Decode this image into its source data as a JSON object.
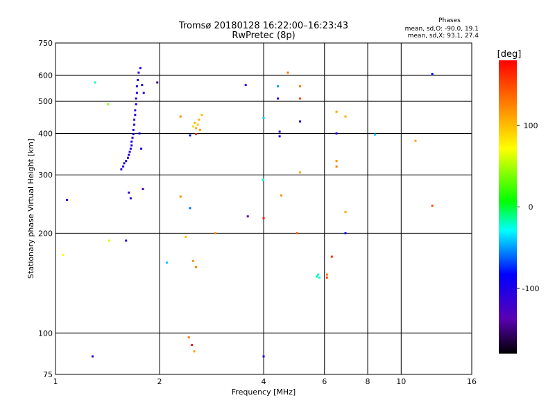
{
  "chart_data": {
    "type": "scatter",
    "title": "Tromsø 20180128 16:22:00–16:23:43",
    "subtitle": "RwPretec (8p)",
    "xlabel": "Frequency [MHz]",
    "ylabel": "Stationary phase Virtual Height [km]",
    "x_scale": "log",
    "y_scale": "log",
    "xlim": [
      1,
      16
    ],
    "ylim": [
      75,
      750
    ],
    "x_ticks": [
      1,
      2,
      4,
      6,
      8,
      10,
      16
    ],
    "y_ticks": [
      75,
      100,
      200,
      300,
      400,
      500,
      600,
      750
    ],
    "grid_x": [
      2,
      4,
      6,
      8,
      10
    ],
    "grid_y": [
      100,
      200,
      300,
      400,
      500,
      600
    ],
    "phases": {
      "heading": "Phases",
      "line_o": "mean, sd,O: -90.0, 19.1",
      "line_x": "mean, sd,X:  93.1, 27.4"
    },
    "colorbar": {
      "label": "[deg]",
      "min": -180,
      "max": 180,
      "ticks": [
        100,
        0,
        -100
      ]
    },
    "points": [
      {
        "x": 1.55,
        "y": 312,
        "c": -105
      },
      {
        "x": 1.57,
        "y": 318,
        "c": -100
      },
      {
        "x": 1.58,
        "y": 325,
        "c": -110
      },
      {
        "x": 1.6,
        "y": 330,
        "c": -100
      },
      {
        "x": 1.62,
        "y": 338,
        "c": -105
      },
      {
        "x": 1.63,
        "y": 345,
        "c": -95
      },
      {
        "x": 1.64,
        "y": 352,
        "c": -110
      },
      {
        "x": 1.65,
        "y": 360,
        "c": -100
      },
      {
        "x": 1.66,
        "y": 368,
        "c": -105
      },
      {
        "x": 1.66,
        "y": 378,
        "c": -95
      },
      {
        "x": 1.67,
        "y": 388,
        "c": -110
      },
      {
        "x": 1.68,
        "y": 398,
        "c": -100
      },
      {
        "x": 1.68,
        "y": 410,
        "c": -105
      },
      {
        "x": 1.69,
        "y": 425,
        "c": -100
      },
      {
        "x": 1.69,
        "y": 440,
        "c": -110
      },
      {
        "x": 1.7,
        "y": 455,
        "c": -95
      },
      {
        "x": 1.7,
        "y": 470,
        "c": -105
      },
      {
        "x": 1.71,
        "y": 490,
        "c": -100
      },
      {
        "x": 1.71,
        "y": 510,
        "c": -110
      },
      {
        "x": 1.72,
        "y": 530,
        "c": -100
      },
      {
        "x": 1.72,
        "y": 555,
        "c": -105
      },
      {
        "x": 1.73,
        "y": 580,
        "c": -95
      },
      {
        "x": 1.74,
        "y": 610,
        "c": -110
      },
      {
        "x": 1.76,
        "y": 630,
        "c": -100
      },
      {
        "x": 1.78,
        "y": 560,
        "c": -100
      },
      {
        "x": 1.8,
        "y": 530,
        "c": -105
      },
      {
        "x": 1.75,
        "y": 400,
        "c": -95
      },
      {
        "x": 1.77,
        "y": 360,
        "c": -100
      },
      {
        "x": 1.63,
        "y": 265,
        "c": -110
      },
      {
        "x": 1.79,
        "y": 272,
        "c": -140
      },
      {
        "x": 1.65,
        "y": 255,
        "c": -100
      },
      {
        "x": 1.3,
        "y": 570,
        "c": -20
      },
      {
        "x": 1.42,
        "y": 490,
        "c": 40
      },
      {
        "x": 1.97,
        "y": 570,
        "c": -150
      },
      {
        "x": 2.3,
        "y": 450,
        "c": 120
      },
      {
        "x": 2.45,
        "y": 395,
        "c": -80
      },
      {
        "x": 2.5,
        "y": 420,
        "c": 90
      },
      {
        "x": 2.53,
        "y": 430,
        "c": 100
      },
      {
        "x": 2.55,
        "y": 415,
        "c": 110
      },
      {
        "x": 2.58,
        "y": 425,
        "c": 95
      },
      {
        "x": 2.6,
        "y": 440,
        "c": 105
      },
      {
        "x": 2.62,
        "y": 410,
        "c": 115
      },
      {
        "x": 2.65,
        "y": 455,
        "c": 100
      },
      {
        "x": 2.55,
        "y": 398,
        "c": 160
      },
      {
        "x": 2.3,
        "y": 258,
        "c": 120
      },
      {
        "x": 2.45,
        "y": 238,
        "c": -60
      },
      {
        "x": 3.55,
        "y": 560,
        "c": -110
      },
      {
        "x": 3.6,
        "y": 225,
        "c": -140
      },
      {
        "x": 4.0,
        "y": 222,
        "c": 170
      },
      {
        "x": 4.0,
        "y": 445,
        "c": -40
      },
      {
        "x": 3.98,
        "y": 290,
        "c": -20
      },
      {
        "x": 4.4,
        "y": 555,
        "c": -50
      },
      {
        "x": 4.4,
        "y": 510,
        "c": -100
      },
      {
        "x": 4.45,
        "y": 405,
        "c": -110
      },
      {
        "x": 4.45,
        "y": 392,
        "c": -100
      },
      {
        "x": 4.5,
        "y": 260,
        "c": 120
      },
      {
        "x": 4.7,
        "y": 610,
        "c": 130
      },
      {
        "x": 5.1,
        "y": 555,
        "c": 130
      },
      {
        "x": 5.1,
        "y": 510,
        "c": 150
      },
      {
        "x": 5.1,
        "y": 435,
        "c": -100
      },
      {
        "x": 5.1,
        "y": 305,
        "c": 110
      },
      {
        "x": 5.0,
        "y": 200,
        "c": 140
      },
      {
        "x": 6.5,
        "y": 465,
        "c": 110
      },
      {
        "x": 6.5,
        "y": 400,
        "c": -90
      },
      {
        "x": 6.5,
        "y": 330,
        "c": 120
      },
      {
        "x": 6.5,
        "y": 318,
        "c": 130
      },
      {
        "x": 6.9,
        "y": 450,
        "c": 110
      },
      {
        "x": 6.9,
        "y": 232,
        "c": 110
      },
      {
        "x": 6.9,
        "y": 200,
        "c": -80
      },
      {
        "x": 6.3,
        "y": 170,
        "c": 160
      },
      {
        "x": 8.4,
        "y": 397,
        "c": -40
      },
      {
        "x": 11.0,
        "y": 380,
        "c": 110
      },
      {
        "x": 12.3,
        "y": 605,
        "c": -80
      },
      {
        "x": 12.3,
        "y": 242,
        "c": 150
      },
      {
        "x": 1.05,
        "y": 172,
        "c": 70
      },
      {
        "x": 1.08,
        "y": 252,
        "c": -100
      },
      {
        "x": 1.43,
        "y": 190,
        "c": 60
      },
      {
        "x": 1.6,
        "y": 190,
        "c": -100
      },
      {
        "x": 1.28,
        "y": 85,
        "c": -100
      },
      {
        "x": 2.43,
        "y": 97,
        "c": 130
      },
      {
        "x": 2.48,
        "y": 92,
        "c": 170
      },
      {
        "x": 2.52,
        "y": 88,
        "c": 110
      },
      {
        "x": 2.38,
        "y": 195,
        "c": 100
      },
      {
        "x": 2.9,
        "y": 200,
        "c": 120
      },
      {
        "x": 4.0,
        "y": 85,
        "c": -110
      },
      {
        "x": 5.75,
        "y": 150,
        "c": -20
      },
      {
        "x": 5.8,
        "y": 147,
        "c": -30
      },
      {
        "x": 5.7,
        "y": 148,
        "c": -10
      },
      {
        "x": 6.1,
        "y": 147,
        "c": 150
      },
      {
        "x": 6.1,
        "y": 150,
        "c": 130
      },
      {
        "x": 2.5,
        "y": 165,
        "c": 120
      },
      {
        "x": 2.55,
        "y": 158,
        "c": 130
      },
      {
        "x": 2.1,
        "y": 163,
        "c": -40
      }
    ]
  }
}
